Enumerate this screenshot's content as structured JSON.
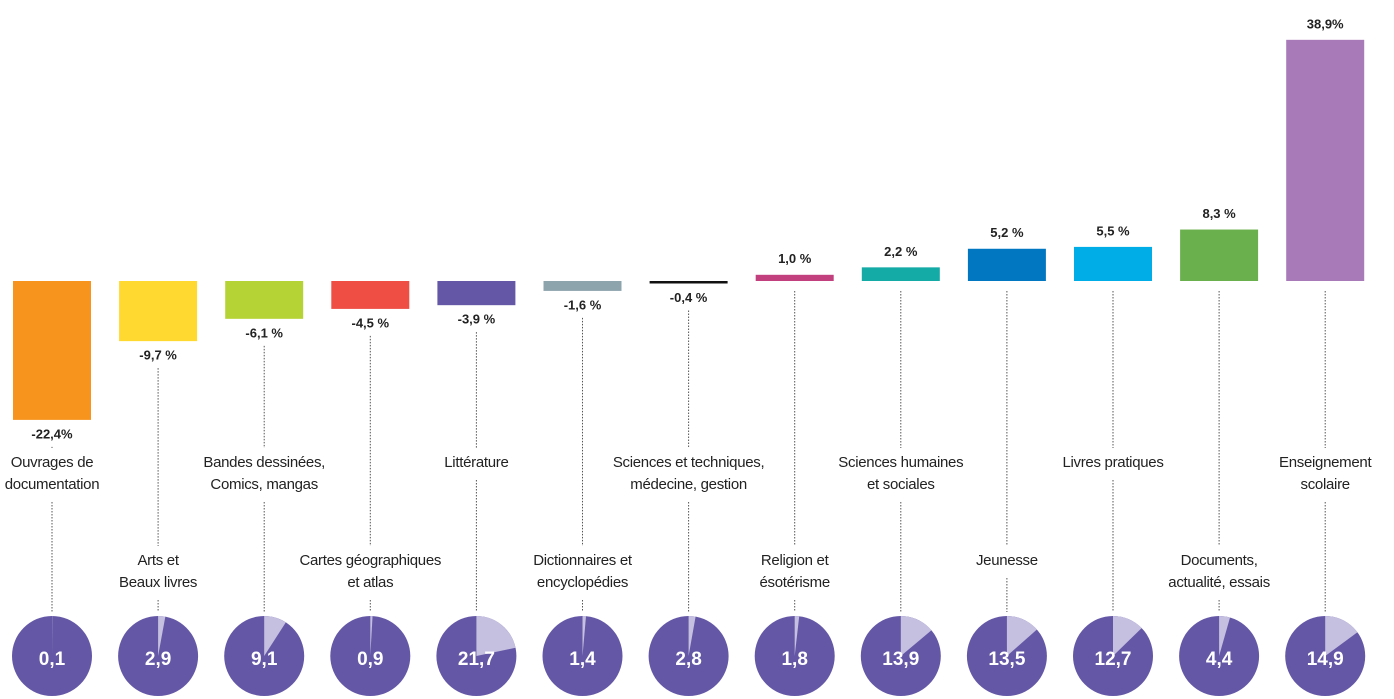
{
  "chart_data": {
    "type": "bar",
    "categories": [
      "Ouvrages de\ndocumentation",
      "Arts et\nBeaux livres",
      "Bandes dessinées,\nComics, mangas",
      "Cartes géographiques\net atlas",
      "Littérature",
      "Dictionnaires et\nencyclopédies",
      "Sciences et techniques,\nmédecine, gestion",
      "Religion et\nésotérisme",
      "Sciences humaines\net sociales",
      "Jeunesse",
      "Livres pratiques",
      "Documents,\nactualité, essais",
      "Enseignement\nscolaire"
    ],
    "values": [
      -22.4,
      -9.7,
      -6.1,
      -4.5,
      -3.9,
      -1.6,
      -0.4,
      1.0,
      2.2,
      5.2,
      5.5,
      8.3,
      38.9
    ],
    "value_labels": [
      "-22,4%",
      "-9,7 %",
      "-6,1 %",
      "-4,5 %",
      "-3,9 %",
      "-1,6 %",
      "-0,4 %",
      "1,0 %",
      "2,2 %",
      "5,2 %",
      "5,5 %",
      "8,3 %",
      "38,9%"
    ],
    "colors": [
      "#f7941d",
      "#ffd92f",
      "#b5d334",
      "#ef4e45",
      "#6457a6",
      "#8ea4ad",
      "#111111",
      "#c2407e",
      "#14aaa5",
      "#0077c0",
      "#00ade6",
      "#6ab04c",
      "#a87bb8"
    ],
    "ylim": [
      -25,
      40
    ],
    "pie": {
      "type": "pie",
      "values": [
        0.1,
        2.9,
        9.1,
        0.9,
        21.7,
        1.4,
        2.8,
        1.8,
        13.9,
        13.5,
        12.7,
        4.4,
        14.9
      ],
      "value_labels": [
        "0,1",
        "2,9",
        "9,1",
        "0,9",
        "21,7",
        "1,4",
        "2,8",
        "1,8",
        "13,9",
        "13,5",
        "12,7",
        "4,4",
        "14,9"
      ],
      "color": "#6457a6",
      "highlight_color": "#c5bfe0"
    }
  }
}
